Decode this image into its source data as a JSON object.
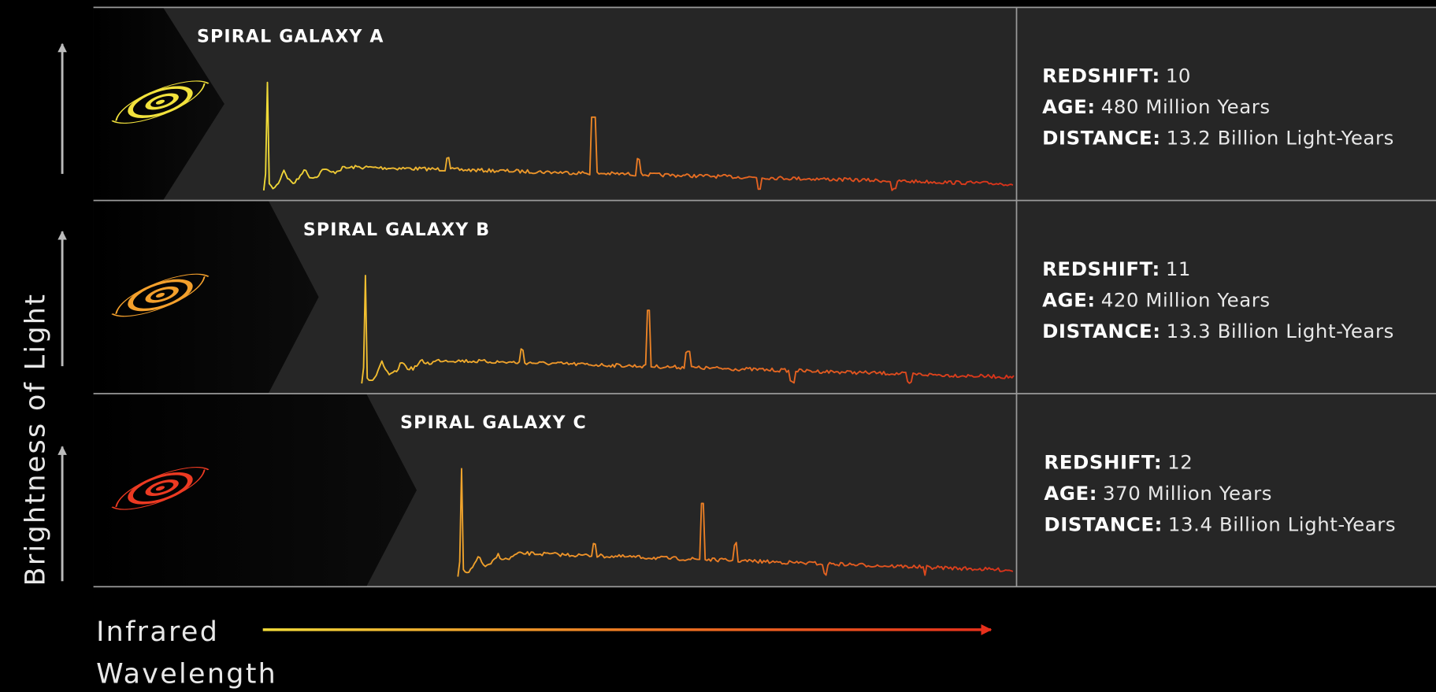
{
  "y_axis_label": "Brightness of Light",
  "x_axis_label": [
    "Infrared",
    "Wavelength"
  ],
  "field_labels": {
    "redshift": "REDSHIFT:",
    "age": "AGE:",
    "distance": "DISTANCE:"
  },
  "panels": [
    {
      "name": "SPIRAL GALAXY A",
      "redshift": "10",
      "age": "480 Million Years",
      "distance": "13.2 Billion Light-Years"
    },
    {
      "name": "SPIRAL GALAXY B",
      "redshift": "11",
      "age": "420 Million Years",
      "distance": "13.3 Billion Light-Years"
    },
    {
      "name": "SPIRAL GALAXY C",
      "redshift": "12",
      "age": "370 Million Years",
      "distance": "13.4 Billion Light-Years"
    }
  ]
}
